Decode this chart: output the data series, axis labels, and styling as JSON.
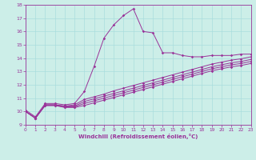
{
  "xlabel": "Windchill (Refroidissement éolien,°C)",
  "xlim": [
    0,
    23
  ],
  "ylim": [
    9,
    18
  ],
  "xticks": [
    0,
    1,
    2,
    3,
    4,
    5,
    6,
    7,
    8,
    9,
    10,
    11,
    12,
    13,
    14,
    15,
    16,
    17,
    18,
    19,
    20,
    21,
    22,
    23
  ],
  "yticks": [
    9,
    10,
    11,
    12,
    13,
    14,
    15,
    16,
    17,
    18
  ],
  "bg_color": "#cceee8",
  "line_color": "#993399",
  "grid_color": "#aadddd",
  "lines": [
    [
      10.1,
      9.6,
      10.6,
      10.6,
      10.5,
      10.6,
      11.5,
      13.4,
      15.5,
      16.5,
      17.2,
      17.7,
      16.0,
      15.9,
      14.4,
      14.4,
      14.2,
      14.1,
      14.1,
      14.2,
      14.2,
      14.2,
      14.3,
      14.3
    ],
    [
      10.0,
      9.5,
      10.5,
      10.5,
      10.4,
      10.5,
      10.9,
      11.1,
      11.3,
      11.55,
      11.75,
      11.95,
      12.15,
      12.35,
      12.55,
      12.75,
      12.95,
      13.15,
      13.35,
      13.55,
      13.7,
      13.85,
      13.95,
      14.1
    ],
    [
      10.0,
      9.5,
      10.5,
      10.5,
      10.4,
      10.4,
      10.75,
      10.95,
      11.15,
      11.35,
      11.55,
      11.75,
      11.95,
      12.15,
      12.35,
      12.55,
      12.75,
      12.95,
      13.15,
      13.35,
      13.5,
      13.65,
      13.75,
      13.9
    ],
    [
      10.0,
      9.5,
      10.45,
      10.45,
      10.35,
      10.35,
      10.6,
      10.8,
      11.0,
      11.2,
      11.4,
      11.6,
      11.8,
      12.0,
      12.2,
      12.4,
      12.6,
      12.8,
      13.0,
      13.2,
      13.35,
      13.5,
      13.6,
      13.75
    ],
    [
      10.0,
      9.5,
      10.45,
      10.45,
      10.3,
      10.3,
      10.45,
      10.65,
      10.85,
      11.05,
      11.25,
      11.45,
      11.65,
      11.85,
      12.05,
      12.25,
      12.45,
      12.65,
      12.85,
      13.05,
      13.2,
      13.35,
      13.45,
      13.6
    ]
  ]
}
